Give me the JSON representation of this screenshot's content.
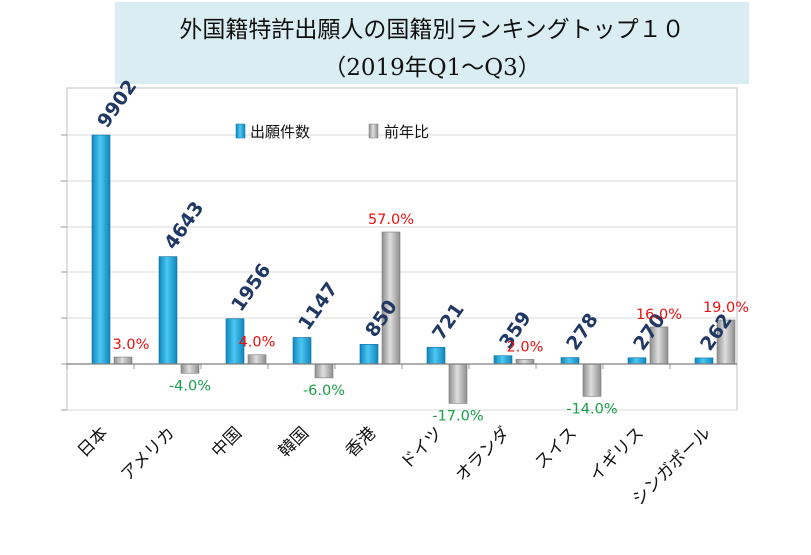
{
  "chart_data": {
    "type": "bar",
    "title": "外国籍特許出願人の国籍別ランキングトップ１０",
    "subtitle": "（2019年Q1～Q3）",
    "categories": [
      "日本",
      "アメリカ",
      "中国",
      "韓国",
      "香港",
      "ドイツ",
      "オランダ",
      "スイス",
      "イギリス",
      "シンガポール"
    ],
    "series": [
      {
        "name": "出願件数",
        "values": [
          9902,
          4643,
          1956,
          1147,
          850,
          721,
          359,
          278,
          270,
          262
        ],
        "labels": [
          "9902",
          "4643",
          "1956",
          "1147",
          "850",
          "721",
          "359",
          "278",
          "270",
          "262"
        ],
        "color": "#1aa7e0"
      },
      {
        "name": "前年比",
        "values": [
          3.0,
          -4.0,
          4.0,
          -6.0,
          57.0,
          -17.0,
          2.0,
          -14.0,
          16.0,
          19.0
        ],
        "labels": [
          "3.0%",
          "-4.0%",
          "4.0%",
          "-6.0%",
          "57.0%",
          "-17.0%",
          "2.0%",
          "-14.0%",
          "16.0%",
          "19.0%"
        ],
        "color": "#b5b5b5"
      }
    ],
    "label_colors": {
      "count": "#1f3864",
      "positive": "#e81010",
      "negative": "#1aa04a"
    },
    "axis_color": "#7f7f7f",
    "gridlines": true,
    "legend_position": "top"
  }
}
